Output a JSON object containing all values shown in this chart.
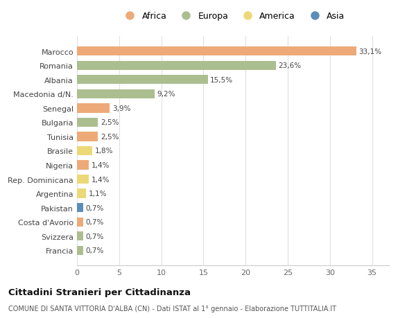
{
  "countries": [
    "Marocco",
    "Romania",
    "Albania",
    "Macedonia d/N.",
    "Senegal",
    "Bulgaria",
    "Tunisia",
    "Brasile",
    "Nigeria",
    "Rep. Dominicana",
    "Argentina",
    "Pakistan",
    "Costa d'Avorio",
    "Svizzera",
    "Francia"
  ],
  "values": [
    33.1,
    23.6,
    15.5,
    9.2,
    3.9,
    2.5,
    2.5,
    1.8,
    1.4,
    1.4,
    1.1,
    0.7,
    0.7,
    0.7,
    0.7
  ],
  "labels": [
    "33,1%",
    "23,6%",
    "15,5%",
    "9,2%",
    "3,9%",
    "2,5%",
    "2,5%",
    "1,8%",
    "1,4%",
    "1,4%",
    "1,1%",
    "0,7%",
    "0,7%",
    "0,7%",
    "0,7%"
  ],
  "continents": [
    "Africa",
    "Europa",
    "Europa",
    "Europa",
    "Africa",
    "Europa",
    "Africa",
    "America",
    "Africa",
    "America",
    "America",
    "Asia",
    "Africa",
    "Europa",
    "Europa"
  ],
  "colors": {
    "Africa": "#EDAA78",
    "Europa": "#ABBE90",
    "America": "#EDD878",
    "Asia": "#5B8DB8"
  },
  "legend_order": [
    "Africa",
    "Europa",
    "America",
    "Asia"
  ],
  "title": "Cittadini Stranieri per Cittadinanza",
  "subtitle": "COMUNE DI SANTA VITTORIA D'ALBA (CN) - Dati ISTAT al 1° gennaio - Elaborazione TUTTITALIA.IT",
  "xlim": [
    0,
    37
  ],
  "xticks": [
    0,
    5,
    10,
    15,
    20,
    25,
    30,
    35
  ],
  "background_color": "#FFFFFF",
  "grid_color": "#E0E0E0"
}
